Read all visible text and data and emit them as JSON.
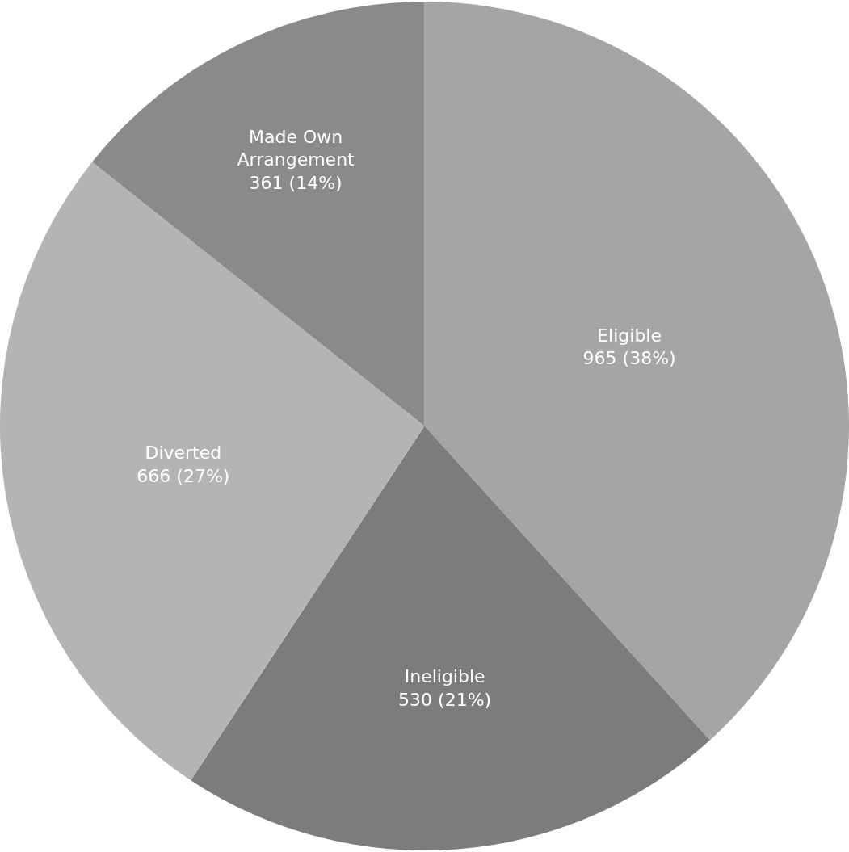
{
  "chart_data": {
    "type": "pie",
    "categories": [
      "Eligible",
      "Ineligible",
      "Diverted",
      "Made Own Arrangement"
    ],
    "values": [
      965,
      530,
      666,
      361
    ],
    "value_labels": [
      "965 (38%)",
      "530 (21%)",
      "666 (27%)",
      "361 (14%)"
    ],
    "colors": [
      "#a5a5a5",
      "#7c7c7c",
      "#b4b4b4",
      "#8a8a8a"
    ],
    "legend": false
  }
}
